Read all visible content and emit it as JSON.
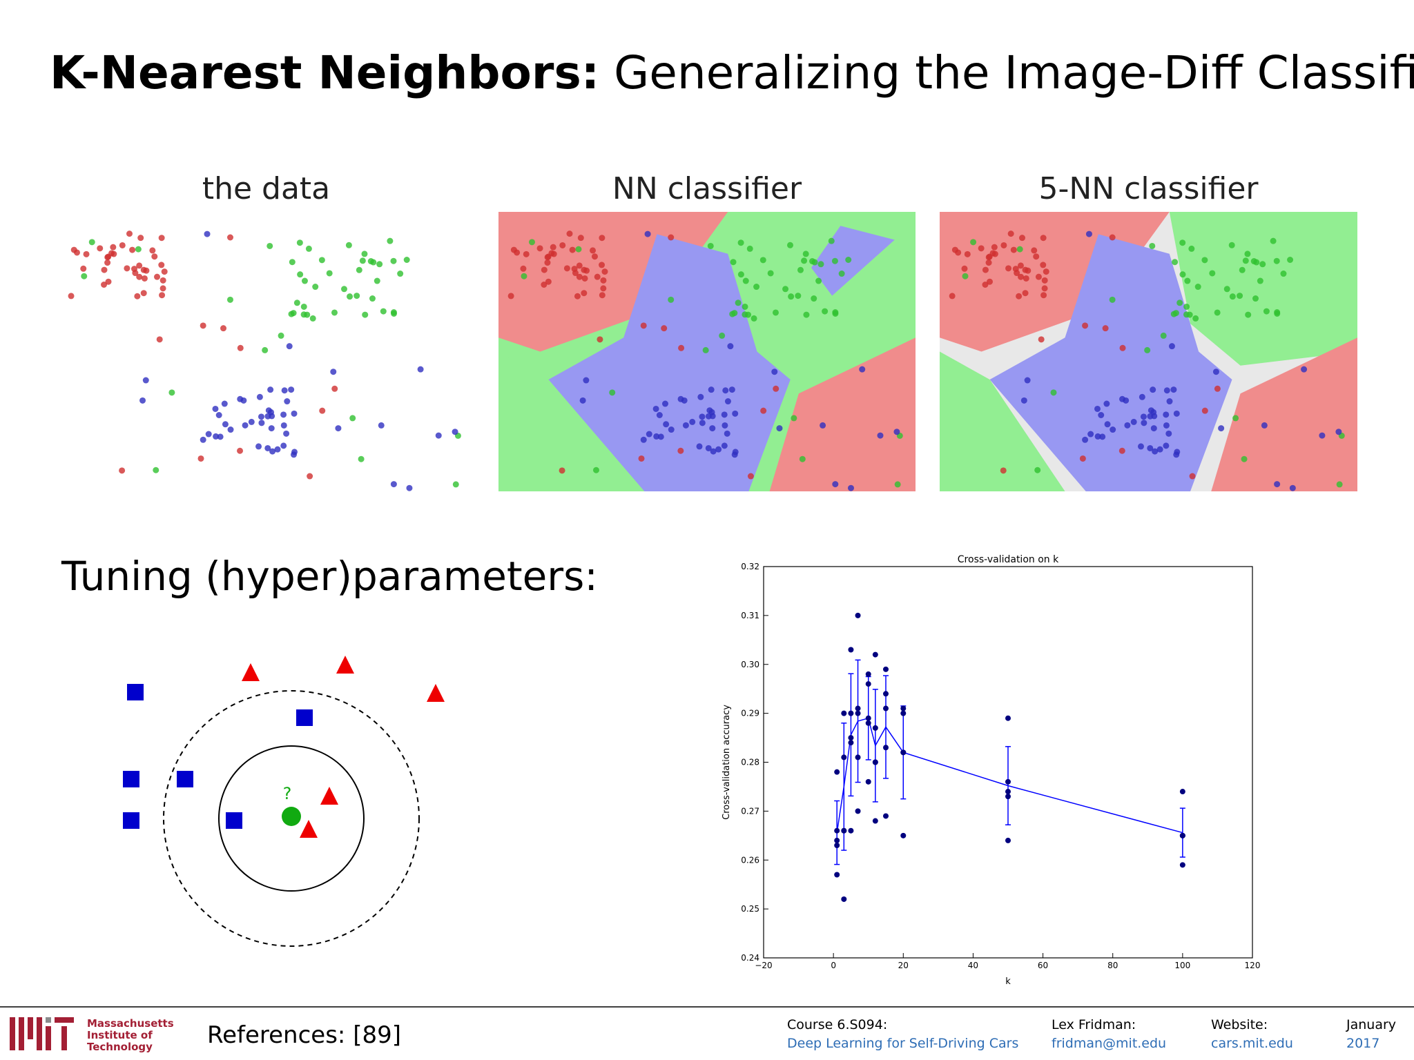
{
  "header": {
    "title_bold": "K-Nearest Neighbors:",
    "title_rest": " Generalizing the Image-Diff Classifier"
  },
  "panels": [
    "the data",
    "NN classifier",
    "5-NN classifier"
  ],
  "section": "Tuning (hyper)parameters:",
  "diagram": {
    "query": "?"
  },
  "chart_data": {
    "type": "scatter",
    "title": "Cross-validation on k",
    "xlabel": "k",
    "ylabel": "Cross-validation accuracy",
    "x": [
      1,
      3,
      5,
      7,
      10,
      12,
      15,
      20,
      50,
      100
    ],
    "points": [
      [
        0.278,
        0.266,
        0.264,
        0.263,
        0.257
      ],
      [
        0.29,
        0.281,
        0.266,
        0.266,
        0.252
      ],
      [
        0.303,
        0.29,
        0.285,
        0.284,
        0.266
      ],
      [
        0.31,
        0.291,
        0.29,
        0.281,
        0.27
      ],
      [
        0.298,
        0.296,
        0.289,
        0.288,
        0.276
      ],
      [
        0.302,
        0.287,
        0.28,
        0.28,
        0.268
      ],
      [
        0.299,
        0.294,
        0.291,
        0.283,
        0.269
      ],
      [
        0.291,
        0.29,
        0.282,
        0.282,
        0.265
      ],
      [
        0.289,
        0.276,
        0.274,
        0.273,
        0.264
      ],
      [
        0.274,
        0.265,
        0.265,
        0.265,
        0.259
      ]
    ],
    "means": [
      0.2656,
      0.275,
      0.2856,
      0.2884,
      0.289,
      0.2834,
      0.2872,
      0.282,
      0.2752,
      0.2656
    ],
    "errors": [
      0.0065,
      0.013,
      0.0125,
      0.0125,
      0.0085,
      0.0115,
      0.0105,
      0.0095,
      0.008,
      0.005
    ],
    "point_color": "#00007f",
    "line_color": "#0000ff",
    "xlim": [
      -20,
      120
    ],
    "xticks": [
      {
        "value": -20,
        "label": "−20"
      },
      0,
      20,
      40,
      60,
      80,
      100,
      120
    ],
    "ylim": [
      0.24,
      0.32
    ],
    "yticks": [
      0.24,
      0.25,
      0.26,
      0.27,
      0.28,
      0.29,
      {
        "value": 0.3,
        "label": "0.30"
      },
      0.31,
      0.32
    ]
  },
  "footer": {
    "logo": [
      "Massachusetts",
      "Institute of",
      "Technology"
    ],
    "references": "References: [89]",
    "columns": [
      [
        "Course 6.S094:",
        "Deep Learning for Self-Driving Cars"
      ],
      [
        "Lex Fridman:",
        "fridman@mit.edu"
      ],
      [
        "Website:",
        "cars.mit.edu"
      ],
      [
        "January",
        "2017"
      ]
    ]
  }
}
